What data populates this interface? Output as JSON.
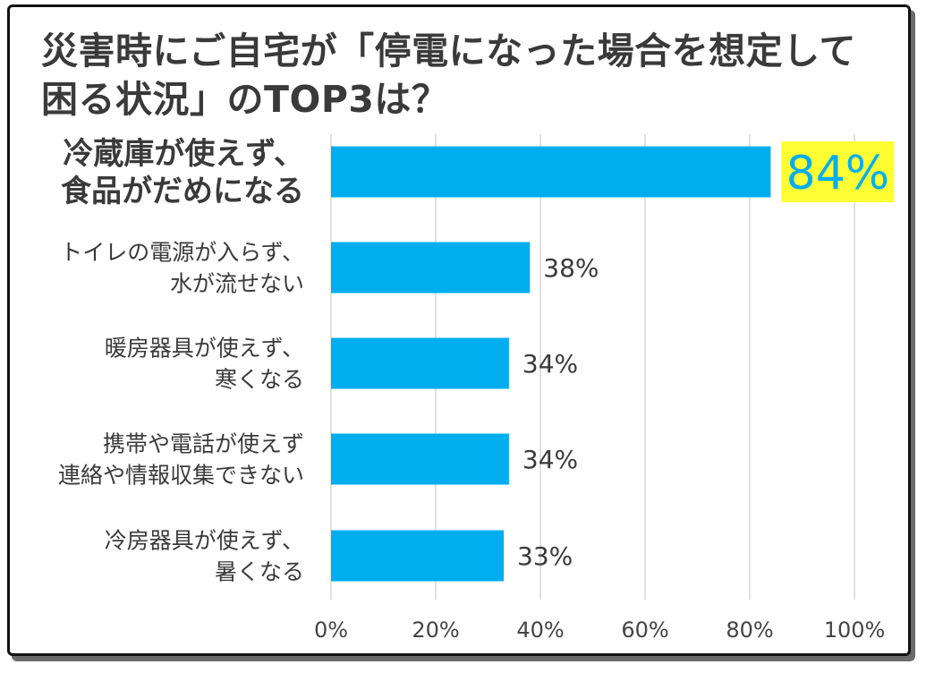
{
  "title_lines": [
    "災害時にご自宅が「停電になった場合を想定して",
    "困る状況」のTOP3は？"
  ],
  "colors": {
    "bar": "#00aeef",
    "highlight_background": "#ffff33",
    "highlight_text": "#00aeef",
    "text": "#3a3a3a",
    "grid": "#d6d6d6",
    "frame": "#111111"
  },
  "chart_data": {
    "type": "bar",
    "orientation": "horizontal",
    "title": "災害時にご自宅が「停電になった場合を想定して困る状況」のTOP3は？",
    "xlabel": "",
    "ylabel": "",
    "xlim": [
      0,
      100
    ],
    "grid": true,
    "ticks": [
      "0%",
      "20%",
      "40%",
      "60%",
      "80%",
      "100%"
    ],
    "tick_values": [
      0,
      20,
      40,
      60,
      80,
      100
    ],
    "categories": [
      [
        "冷蔵庫が使えず、",
        "食品がだめになる"
      ],
      [
        "トイレの電源が入らず、",
        "水が流せない"
      ],
      [
        "暖房器具が使えず、",
        "寒くなる"
      ],
      [
        "携帯や電話が使えず",
        "連絡や情報収集できない"
      ],
      [
        "冷房器具が使えず、",
        "暑くなる"
      ]
    ],
    "values": [
      84,
      38,
      34,
      34,
      33
    ],
    "value_labels": [
      "84%",
      "38%",
      "34%",
      "34%",
      "33%"
    ],
    "highlight_index": 0
  }
}
